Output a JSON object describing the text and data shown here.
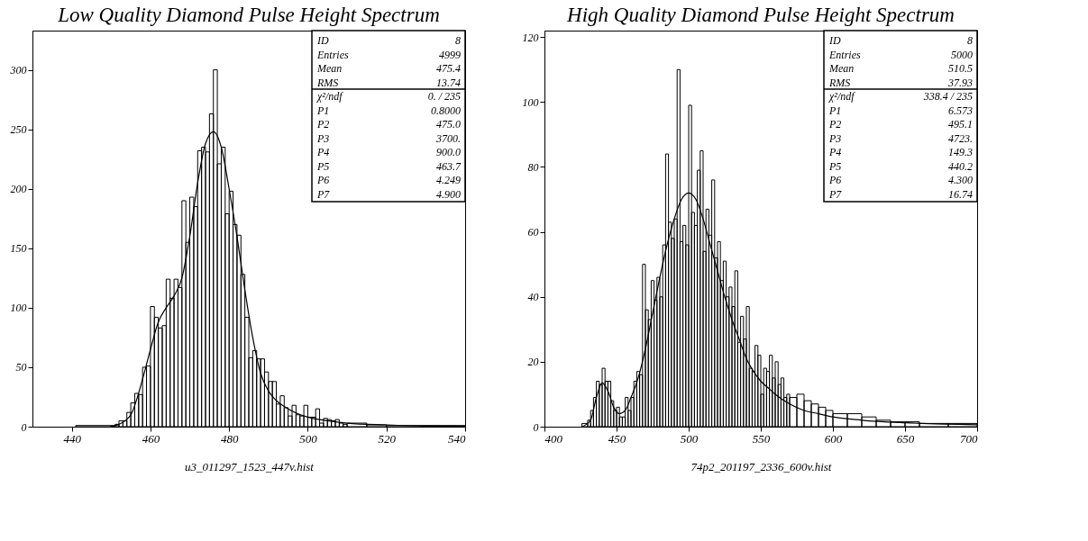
{
  "chart_data": [
    {
      "type": "histogram",
      "title": "Low Quality Diamond Pulse Height Spectrum",
      "xlabel": "u3_011297_1523_447v.hist",
      "color": "#000000",
      "bins": [
        441,
        450,
        451,
        452,
        453,
        454,
        455,
        456,
        457,
        458,
        459,
        460,
        461,
        462,
        463,
        464,
        465,
        466,
        467,
        468,
        469,
        470,
        471,
        472,
        473,
        474,
        475,
        476,
        477,
        478,
        479,
        480,
        481,
        482,
        483,
        484,
        485,
        486,
        487,
        488,
        489,
        490,
        491,
        492,
        493,
        494,
        495,
        496,
        497,
        498,
        499,
        500,
        501,
        502,
        503,
        504,
        505,
        506,
        507,
        508,
        509,
        510,
        515,
        520,
        530,
        540
      ],
      "values": [
        1,
        1,
        2,
        5,
        5,
        12,
        20,
        28,
        27,
        50,
        51,
        101,
        92,
        83,
        85,
        124,
        108,
        124,
        117,
        190,
        155,
        193,
        185,
        232,
        235,
        231,
        263,
        300,
        221,
        235,
        179,
        198,
        170,
        161,
        128,
        92,
        58,
        64,
        57,
        57,
        46,
        38,
        38,
        19,
        26,
        16,
        9,
        18,
        10,
        9,
        18,
        8,
        8,
        15,
        3,
        7,
        6,
        5,
        6,
        3,
        2,
        3,
        1.5,
        1,
        1
      ],
      "series": [
        {
          "type": "line",
          "color": "#000000",
          "x": [
            450,
            452,
            455,
            458,
            460,
            462,
            464,
            466,
            468,
            470,
            472,
            474,
            476,
            478,
            480,
            482,
            484,
            486,
            488,
            490,
            492,
            495,
            500,
            505,
            510,
            520,
            530,
            540
          ],
          "values": [
            0,
            2,
            10,
            40,
            65,
            88,
            100,
            110,
            125,
            160,
            205,
            238,
            248,
            235,
            200,
            160,
            115,
            75,
            45,
            30,
            22,
            15,
            8,
            5,
            3,
            1.5,
            0.5,
            0.2
          ]
        }
      ],
      "xlim": [
        430,
        540
      ],
      "xticks": [
        440,
        460,
        480,
        500,
        520,
        540
      ],
      "ylim": [
        0,
        333
      ],
      "yticks": [
        0,
        50,
        100,
        150,
        200,
        250,
        300
      ],
      "grid": false,
      "annotations": [
        "ID 8",
        "Entries 4999",
        "Mean 475.4",
        "RMS 13.74",
        "χ²/ndf 0. / 235",
        "P1 0.8000",
        "P2 475.0",
        "P3 3700.",
        "P4 900.0",
        "P5 463.7",
        "P6 4.249",
        "P7 4.900"
      ]
    },
    {
      "type": "histogram",
      "title": "High Quality Diamond Pulse Height Spectrum",
      "xlabel": "74p2_201197_2336_600v.hist",
      "color": "#000000",
      "bins": [
        426,
        430,
        432,
        434,
        436,
        438,
        440,
        442,
        444,
        446,
        448,
        450,
        452,
        454,
        456,
        458,
        460,
        462,
        464,
        466,
        468,
        470,
        472,
        474,
        476,
        478,
        480,
        482,
        484,
        486,
        488,
        490,
        492,
        494,
        496,
        498,
        500,
        502,
        504,
        506,
        508,
        510,
        512,
        514,
        516,
        518,
        520,
        522,
        524,
        526,
        528,
        530,
        532,
        534,
        536,
        538,
        540,
        542,
        544,
        546,
        548,
        550,
        552,
        554,
        556,
        558,
        560,
        562,
        564,
        566,
        568,
        570,
        575,
        580,
        585,
        590,
        595,
        600,
        610,
        620,
        630,
        640,
        650,
        660,
        680,
        700
      ],
      "values": [
        1,
        2,
        5,
        9,
        14,
        13,
        18,
        14,
        14,
        8,
        5,
        6,
        3,
        3,
        9,
        5,
        9,
        14,
        17,
        16,
        50,
        36,
        33,
        45,
        39,
        46,
        40,
        56,
        84,
        63,
        58,
        64,
        110,
        57,
        62,
        56,
        99,
        66,
        62,
        79,
        85,
        54,
        67,
        59,
        76,
        52,
        57,
        45,
        51,
        40,
        43,
        37,
        48,
        26,
        34,
        27,
        37,
        18,
        17,
        25,
        22,
        10,
        18,
        17,
        22,
        15,
        20,
        13,
        15,
        9,
        10,
        9,
        10,
        8,
        7,
        6,
        5,
        4,
        4,
        3,
        2,
        1.5,
        1.5,
        1,
        1
      ],
      "series": [
        {
          "type": "line",
          "color": "#000000",
          "x": [
            426,
            432,
            436,
            440,
            444,
            448,
            452,
            456,
            460,
            465,
            470,
            475,
            480,
            485,
            490,
            495,
            500,
            505,
            510,
            515,
            520,
            525,
            530,
            535,
            540,
            545,
            550,
            555,
            560,
            570,
            580,
            590,
            600,
            620,
            650,
            700
          ],
          "values": [
            0,
            2,
            9,
            13.5,
            11,
            6,
            4,
            5,
            9,
            15,
            24,
            35,
            46,
            56,
            64,
            70,
            72,
            70,
            64,
            56,
            48,
            40,
            33,
            27,
            21,
            17,
            14,
            12,
            10,
            7,
            5,
            4,
            3,
            2,
            1.2,
            0.6
          ]
        }
      ],
      "xlim": [
        400,
        700
      ],
      "xticks": [
        400,
        450,
        500,
        550,
        600,
        650,
        700
      ],
      "ylim": [
        0,
        122
      ],
      "yticks": [
        0,
        20,
        40,
        60,
        80,
        100,
        120
      ],
      "grid": false,
      "annotations": [
        "ID 8",
        "Entries 5000",
        "Mean 510.5",
        "RMS 37.93",
        "χ²/ndf 338.4 / 235",
        "P1 6.573",
        "P2 495.1",
        "P3 4723.",
        "P4 149.3",
        "P5 440.2",
        "P6 4.300",
        "P7 16.74"
      ]
    }
  ]
}
